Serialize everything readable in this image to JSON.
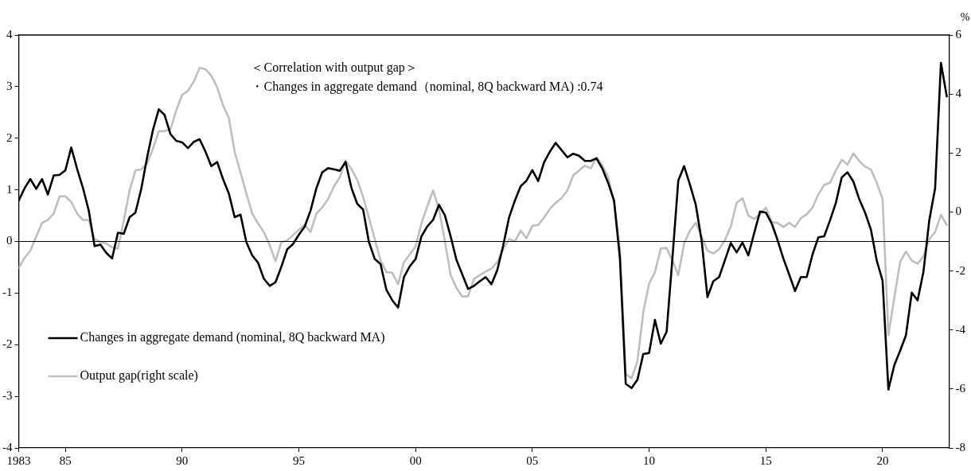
{
  "chart_data": {
    "type": "line",
    "x": [
      1983,
      1983.25,
      1983.5,
      1983.75,
      1984,
      1984.25,
      1984.5,
      1984.75,
      1985,
      1985.25,
      1985.5,
      1985.75,
      1986,
      1986.25,
      1986.5,
      1986.75,
      1987,
      1987.25,
      1987.5,
      1987.75,
      1988,
      1988.25,
      1988.5,
      1988.75,
      1989,
      1989.25,
      1989.5,
      1989.75,
      1990,
      1990.25,
      1990.5,
      1990.75,
      1991,
      1991.25,
      1991.5,
      1991.75,
      1992,
      1992.25,
      1992.5,
      1992.75,
      1993,
      1993.25,
      1993.5,
      1993.75,
      1994,
      1994.25,
      1994.5,
      1994.75,
      1995,
      1995.25,
      1995.5,
      1995.75,
      1996,
      1996.25,
      1996.5,
      1996.75,
      1997,
      1997.25,
      1997.5,
      1997.75,
      1998,
      1998.25,
      1998.5,
      1998.75,
      1999,
      1999.25,
      1999.5,
      1999.75,
      2000,
      2000.25,
      2000.5,
      2000.75,
      2001,
      2001.25,
      2001.5,
      2001.75,
      2002,
      2002.25,
      2002.5,
      2002.75,
      2003,
      2003.25,
      2003.5,
      2003.75,
      2004,
      2004.25,
      2004.5,
      2004.75,
      2005,
      2005.25,
      2005.5,
      2005.75,
      2006,
      2006.25,
      2006.5,
      2006.75,
      2007,
      2007.25,
      2007.5,
      2007.75,
      2008,
      2008.25,
      2008.5,
      2008.75,
      2009,
      2009.25,
      2009.5,
      2009.75,
      2010,
      2010.25,
      2010.5,
      2010.75,
      2011,
      2011.25,
      2011.5,
      2011.75,
      2012,
      2012.25,
      2012.5,
      2012.75,
      2013,
      2013.25,
      2013.5,
      2013.75,
      2014,
      2014.25,
      2014.5,
      2014.75,
      2015,
      2015.25,
      2015.5,
      2015.75,
      2016,
      2016.25,
      2016.5,
      2016.75,
      2017,
      2017.25,
      2017.5,
      2017.75,
      2018,
      2018.25,
      2018.5,
      2018.75,
      2019,
      2019.25,
      2019.5,
      2019.75,
      2020,
      2020.25,
      2020.5,
      2020.75,
      2021,
      2021.25,
      2021.5,
      2021.75,
      2022,
      2022.25,
      2022.5,
      2022.75
    ],
    "series": [
      {
        "name": "Changes in aggregate demand (nominal, 8Q backward MA)",
        "color": "#000000",
        "values": [
          0.79,
          1.03,
          1.21,
          1.02,
          1.21,
          0.91,
          1.28,
          1.29,
          1.38,
          1.82,
          1.41,
          1.04,
          0.6,
          -0.09,
          -0.06,
          -0.22,
          -0.33,
          0.17,
          0.15,
          0.47,
          0.56,
          1.02,
          1.63,
          2.16,
          2.56,
          2.45,
          2.08,
          1.95,
          1.92,
          1.81,
          1.93,
          1.98,
          1.74,
          1.46,
          1.54,
          1.21,
          0.93,
          0.47,
          0.52,
          -0.01,
          -0.27,
          -0.41,
          -0.72,
          -0.86,
          -0.79,
          -0.49,
          -0.15,
          -0.05,
          0.13,
          0.29,
          0.6,
          1.03,
          1.34,
          1.42,
          1.4,
          1.37,
          1.54,
          1.04,
          0.73,
          0.62,
          -0.01,
          -0.34,
          -0.44,
          -0.94,
          -1.14,
          -1.28,
          -0.69,
          -0.48,
          -0.34,
          0.1,
          0.29,
          0.42,
          0.71,
          0.51,
          0.1,
          -0.36,
          -0.64,
          -0.92,
          -0.86,
          -0.77,
          -0.69,
          -0.83,
          -0.55,
          -0.08,
          0.46,
          0.79,
          1.07,
          1.18,
          1.38,
          1.17,
          1.53,
          1.74,
          1.91,
          1.77,
          1.63,
          1.7,
          1.66,
          1.56,
          1.56,
          1.61,
          1.41,
          1.13,
          0.79,
          -0.32,
          -2.76,
          -2.84,
          -2.68,
          -2.18,
          -2.16,
          -1.52,
          -1.98,
          -1.75,
          -0.32,
          1.18,
          1.46,
          1.1,
          0.71,
          0.02,
          -1.08,
          -0.77,
          -0.69,
          -0.36,
          -0.03,
          -0.21,
          -0.02,
          -0.27,
          0.16,
          0.58,
          0.56,
          0.35,
          0.03,
          -0.33,
          -0.64,
          -0.96,
          -0.69,
          -0.69,
          -0.25,
          0.08,
          0.1,
          0.41,
          0.75,
          1.24,
          1.34,
          1.16,
          0.82,
          0.56,
          0.23,
          -0.37,
          -0.76,
          -2.87,
          -2.4,
          -2.12,
          -1.82,
          -0.99,
          -1.14,
          -0.59,
          0.41,
          1.03,
          3.46,
          2.81
        ]
      },
      {
        "name": "Output gap(right scale)",
        "color": "#bfbfbf",
        "axis": "y2",
        "values": [
          -1.9,
          -1.56,
          -1.31,
          -0.83,
          -0.37,
          -0.27,
          -0.05,
          0.53,
          0.53,
          0.34,
          -0.05,
          -0.27,
          -0.27,
          -0.92,
          -1.02,
          -1.07,
          -1.2,
          -1.24,
          -0.29,
          0.73,
          1.41,
          1.44,
          1.65,
          2.14,
          2.74,
          2.74,
          2.8,
          3.45,
          3.97,
          4.11,
          4.42,
          4.89,
          4.84,
          4.62,
          4.23,
          3.62,
          3.19,
          2.04,
          1.34,
          0.63,
          -0.05,
          -0.39,
          -0.68,
          -1.12,
          -1.67,
          -1.02,
          -0.97,
          -0.78,
          -0.6,
          -0.44,
          -0.68,
          -0.05,
          0.15,
          0.44,
          0.86,
          1.17,
          1.73,
          1.46,
          1.09,
          0.51,
          -0.19,
          -0.92,
          -1.65,
          -2.04,
          -2.06,
          -2.45,
          -1.7,
          -1.44,
          -1.17,
          -0.39,
          0.19,
          0.73,
          0.1,
          -0.97,
          -2.14,
          -2.58,
          -2.87,
          -2.85,
          -2.27,
          -2.14,
          -2.02,
          -1.92,
          -1.7,
          -1.26,
          -0.92,
          -0.99,
          -0.63,
          -0.89,
          -0.47,
          -0.44,
          -0.19,
          0.1,
          0.31,
          0.47,
          0.73,
          1.24,
          1.41,
          1.57,
          1.48,
          1.85,
          1.57,
          1.19,
          0.31,
          -1.26,
          -5.49,
          -5.64,
          -5.07,
          -3.4,
          -2.43,
          -2.04,
          -1.24,
          -1.22,
          -1.65,
          -2.14,
          -1.07,
          -0.63,
          -0.37,
          -0.83,
          -1.31,
          -1.41,
          -1.26,
          -0.95,
          -0.49,
          0.31,
          0.47,
          -0.12,
          -0.24,
          -0.08,
          0.15,
          -0.34,
          -0.37,
          -0.51,
          -0.37,
          -0.51,
          -0.21,
          -0.08,
          0.15,
          0.6,
          0.92,
          0.99,
          1.41,
          1.77,
          1.6,
          1.99,
          1.73,
          1.54,
          1.44,
          0.99,
          0.44,
          -4.18,
          -2.92,
          -1.7,
          -1.34,
          -1.65,
          -1.75,
          -1.51,
          -0.92,
          -0.68,
          -0.1,
          -0.44
        ]
      }
    ],
    "y2label": "%",
    "annotations": [
      "＜Correlation with output gap＞",
      "・Changes in aggregate demand（nominal, 8Q backward MA) :0.74"
    ],
    "xlim": [
      1983,
      2022.85
    ],
    "xticks": [
      {
        "value": 1983,
        "label": "1983"
      },
      {
        "value": 1985,
        "label": "85"
      },
      {
        "value": 1990,
        "label": "90"
      },
      {
        "value": 1995,
        "label": "95"
      },
      {
        "value": 2000,
        "label": "00"
      },
      {
        "value": 2005,
        "label": "05"
      },
      {
        "value": 2010,
        "label": "10"
      },
      {
        "value": 2015,
        "label": "15"
      },
      {
        "value": 2020,
        "label": "20"
      }
    ],
    "ylim": [
      -4,
      4
    ],
    "yticks": [
      -4,
      -3,
      -2,
      -1,
      0,
      1,
      2,
      3,
      4
    ],
    "y2lim": [
      -8,
      6
    ],
    "y2ticks": [
      -8,
      -6,
      -4,
      -2,
      0,
      2,
      4,
      6
    ],
    "ref_lines": [
      {
        "axis": "y",
        "value": 0,
        "color": "#000000"
      }
    ],
    "grid": false,
    "legend": "bottom left",
    "marker": "none",
    "line_style": "solid"
  }
}
